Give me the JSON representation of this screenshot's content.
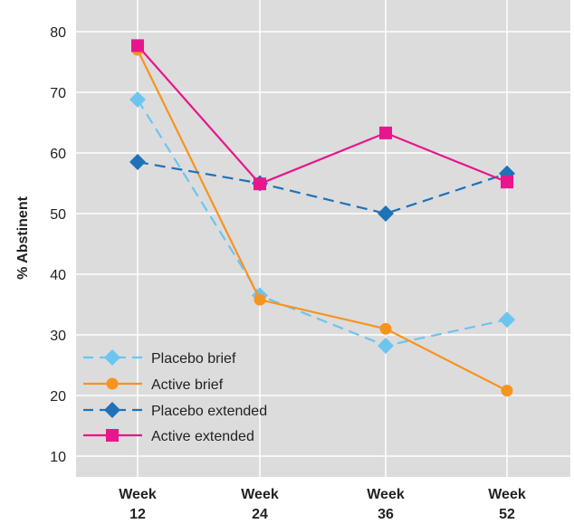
{
  "chart_data": {
    "type": "line",
    "categories": [
      [
        "Week",
        "12"
      ],
      [
        "Week",
        "24"
      ],
      [
        "Week",
        "36"
      ],
      [
        "Week",
        "52"
      ]
    ],
    "ylabel": "% Abstinent",
    "ylim": [
      5,
      85
    ],
    "yticks": [
      10,
      20,
      30,
      40,
      50,
      60,
      70,
      80
    ],
    "grid": true,
    "legend_position": "bottom-left",
    "series": [
      {
        "name": "Placebo brief",
        "values": [
          68.8,
          36.5,
          28.2,
          32.5
        ],
        "color": "#6cc5ef",
        "dash": "dashed",
        "marker": "diamond"
      },
      {
        "name": "Active brief",
        "values": [
          77.0,
          35.8,
          31.0,
          20.8
        ],
        "color": "#f7941d",
        "dash": "solid",
        "marker": "circle"
      },
      {
        "name": "Placebo extended",
        "values": [
          58.5,
          55.0,
          50.0,
          56.6
        ],
        "color": "#1f72b8",
        "dash": "dashed",
        "marker": "diamond"
      },
      {
        "name": "Active extended",
        "values": [
          77.7,
          54.9,
          63.3,
          55.2
        ],
        "color": "#e8168c",
        "dash": "solid",
        "marker": "square"
      }
    ]
  }
}
